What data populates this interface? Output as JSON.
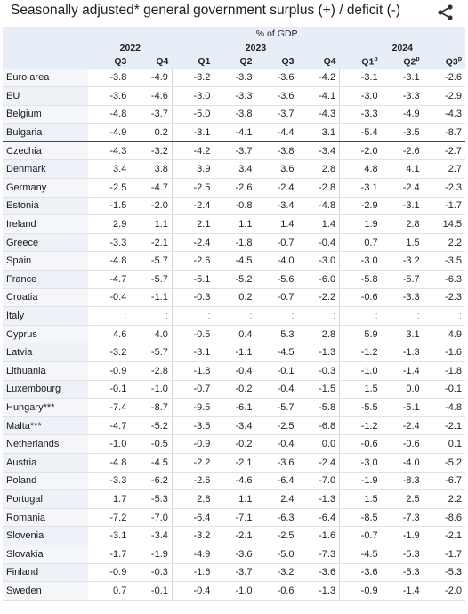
{
  "title": "Seasonally adjusted* general government surplus (+) / deficit (-)",
  "share_icon": "share-icon",
  "unit": "% of GDP",
  "years": [
    {
      "label": "2022",
      "span": 2
    },
    {
      "label": "2023",
      "span": 4
    },
    {
      "label": "2024",
      "span": 3
    }
  ],
  "quarters": [
    {
      "label": "Q3",
      "sup": ""
    },
    {
      "label": "Q4",
      "sup": ""
    },
    {
      "label": "Q1",
      "sup": ""
    },
    {
      "label": "Q2",
      "sup": ""
    },
    {
      "label": "Q3",
      "sup": ""
    },
    {
      "label": "Q4",
      "sup": ""
    },
    {
      "label": "Q1",
      "sup": "p"
    },
    {
      "label": "Q2",
      "sup": "p"
    },
    {
      "label": "Q3",
      "sup": "p"
    }
  ],
  "divider_after_row": "Bulgaria",
  "divider_color": "#c8102e",
  "rows": [
    {
      "name": "Euro area",
      "values": [
        "-3.8",
        "-4.9",
        "-3.2",
        "-3.3",
        "-3.6",
        "-4.2",
        "-3.1",
        "-3.1",
        "-2.6"
      ]
    },
    {
      "name": "EU",
      "values": [
        "-3.6",
        "-4.6",
        "-3.0",
        "-3.3",
        "-3.6",
        "-4.1",
        "-3.0",
        "-3.3",
        "-2.9"
      ]
    },
    {
      "name": "Belgium",
      "values": [
        "-4.8",
        "-3.7",
        "-5.0",
        "-3.8",
        "-3.7",
        "-4.3",
        "-3.3",
        "-4.9",
        "-4.3"
      ]
    },
    {
      "name": "Bulgaria",
      "values": [
        "-4.9",
        "0.2",
        "-3.1",
        "-4.1",
        "-4.4",
        "3.1",
        "-5.4",
        "-3.5",
        "-8.7"
      ]
    },
    {
      "name": "Czechia",
      "values": [
        "-4.3",
        "-3.2",
        "-4.2",
        "-3.7",
        "-3.8",
        "-3.4",
        "-2.0",
        "-2.6",
        "-2.7"
      ]
    },
    {
      "name": "Denmark",
      "values": [
        "3.4",
        "3.8",
        "3.9",
        "3.4",
        "3.6",
        "2.8",
        "4.8",
        "4.1",
        "2.7"
      ]
    },
    {
      "name": "Germany",
      "values": [
        "-2.5",
        "-4.7",
        "-2.5",
        "-2.6",
        "-2.4",
        "-2.8",
        "-3.1",
        "-2.4",
        "-2.3"
      ]
    },
    {
      "name": "Estonia",
      "values": [
        "-1.5",
        "-2.0",
        "-2.4",
        "-0.8",
        "-3.4",
        "-4.8",
        "-2.9",
        "-3.1",
        "-1.7"
      ]
    },
    {
      "name": "Ireland",
      "values": [
        "2.9",
        "1.1",
        "2.1",
        "1.1",
        "1.4",
        "1.4",
        "1.9",
        "2.8",
        "14.5"
      ]
    },
    {
      "name": "Greece",
      "values": [
        "-3.3",
        "-2.1",
        "-2.4",
        "-1.8",
        "-0.7",
        "-0.4",
        "0.7",
        "1.5",
        "2.2"
      ]
    },
    {
      "name": "Spain",
      "values": [
        "-4.8",
        "-5.7",
        "-2.6",
        "-4.5",
        "-4.0",
        "-3.0",
        "-3.0",
        "-3.2",
        "-3.5"
      ]
    },
    {
      "name": "France",
      "values": [
        "-4.7",
        "-5.7",
        "-5.1",
        "-5.2",
        "-5.6",
        "-6.0",
        "-5.8",
        "-5.7",
        "-6.3"
      ]
    },
    {
      "name": "Croatia",
      "values": [
        "-0.4",
        "-1.1",
        "-0.3",
        "0.2",
        "-0.7",
        "-2.2",
        "-0.6",
        "-3.3",
        "-2.3"
      ]
    },
    {
      "name": "Italy",
      "values": [
        ":",
        ":",
        ":",
        ":",
        ":",
        ":",
        ":",
        ":",
        ":"
      ]
    },
    {
      "name": "Cyprus",
      "values": [
        "4.6",
        "4.0",
        "-0.5",
        "0.4",
        "5.3",
        "2.8",
        "5.9",
        "3.1",
        "4.9"
      ]
    },
    {
      "name": "Latvia",
      "values": [
        "-3.2",
        "-5.7",
        "-3.1",
        "-1.1",
        "-4.5",
        "-1.3",
        "-1.2",
        "-1.3",
        "-1.6"
      ]
    },
    {
      "name": "Lithuania",
      "values": [
        "-0.9",
        "-2.8",
        "-1.8",
        "-0.4",
        "-0.1",
        "-0.3",
        "-1.0",
        "-1.4",
        "-1.8"
      ]
    },
    {
      "name": "Luxembourg",
      "values": [
        "-0.1",
        "-1.0",
        "-0.7",
        "-0.2",
        "-0.4",
        "-1.5",
        "1.5",
        "0.0",
        "-0.1"
      ]
    },
    {
      "name": "Hungary***",
      "values": [
        "-7.4",
        "-8.7",
        "-9.5",
        "-6.1",
        "-5.7",
        "-5.8",
        "-5.5",
        "-5.1",
        "-4.8"
      ]
    },
    {
      "name": "Malta***",
      "values": [
        "-4.7",
        "-5.2",
        "-3.5",
        "-3.4",
        "-2.5",
        "-6.8",
        "-1.2",
        "-2.4",
        "-2.1"
      ]
    },
    {
      "name": "Netherlands",
      "values": [
        "-1.0",
        "-0.5",
        "-0.9",
        "-0.2",
        "-0.4",
        "0.0",
        "-0.6",
        "-0.6",
        "0.1"
      ]
    },
    {
      "name": "Austria",
      "values": [
        "-4.8",
        "-4.5",
        "-2.2",
        "-2.1",
        "-3.6",
        "-2.4",
        "-3.0",
        "-4.0",
        "-5.2"
      ]
    },
    {
      "name": "Poland",
      "values": [
        "-3.3",
        "-6.2",
        "-2.6",
        "-4.6",
        "-6.4",
        "-7.0",
        "-1.9",
        "-8.3",
        "-6.7"
      ]
    },
    {
      "name": "Portugal",
      "values": [
        "1.7",
        "-5.3",
        "2.8",
        "1.1",
        "2.4",
        "-1.3",
        "1.5",
        "2.5",
        "2.2"
      ]
    },
    {
      "name": "Romania",
      "values": [
        "-7.2",
        "-7.0",
        "-6.4",
        "-7.1",
        "-6.3",
        "-6.4",
        "-8.5",
        "-7.3",
        "-8.6"
      ]
    },
    {
      "name": "Slovenia",
      "values": [
        "-3.1",
        "-3.4",
        "-3.2",
        "-2.1",
        "-2.5",
        "-1.6",
        "-0.7",
        "-1.9",
        "-2.1"
      ]
    },
    {
      "name": "Slovakia",
      "values": [
        "-1.7",
        "-1.9",
        "-4.9",
        "-3.6",
        "-5.0",
        "-7.3",
        "-4.5",
        "-5.3",
        "-1.7"
      ]
    },
    {
      "name": "Finland",
      "values": [
        "-0.9",
        "-0.3",
        "-1.6",
        "-3.7",
        "-3.2",
        "-3.6",
        "-3.6",
        "-5.3",
        "-5.3"
      ]
    },
    {
      "name": "Sweden",
      "values": [
        "0.7",
        "-0.1",
        "-0.4",
        "-1.0",
        "-0.6",
        "-1.3",
        "-0.9",
        "-1.4",
        "-2.0"
      ]
    }
  ]
}
